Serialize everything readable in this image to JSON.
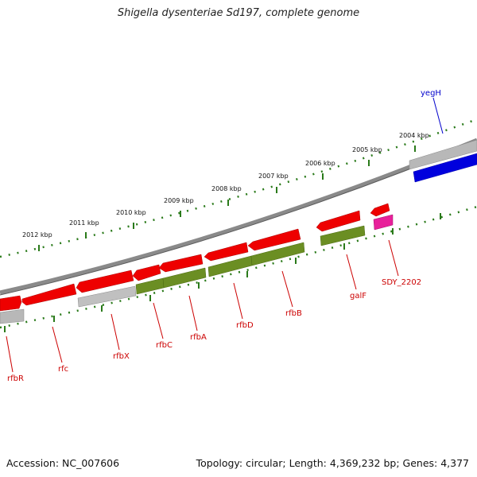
{
  "title": "Shigella dysenteriae Sd197, complete genome",
  "footer": {
    "accession": "Accession: NC_007606",
    "info": "Topology: circular; Length: 4,369,232 bp; Genes: 4,377"
  },
  "kbp_labels": [
    "2012 kbp",
    "2011 kbp",
    "2010 kbp",
    "2009 kbp",
    "2008 kbp",
    "2007 kbp",
    "2006 kbp",
    "2005 kbp",
    "2004 kbp"
  ],
  "gene_labels": [
    "rfbR",
    "rfc",
    "rfbX",
    "rfbC",
    "rfbA",
    "rfbD",
    "rfbB",
    "galF",
    "SDY_2202",
    "yegH"
  ],
  "colors": {
    "red_gene": "#ee0000",
    "olive_gene": "#6b8e23",
    "gray_gene": "#b8b8b8",
    "blue_gene": "#0000dd",
    "magenta_gene": "#e8209a",
    "tick_green": "#2a7a1a",
    "backbone": "#808080",
    "label_red": "#cc0000",
    "label_blue": "#0000cc"
  }
}
